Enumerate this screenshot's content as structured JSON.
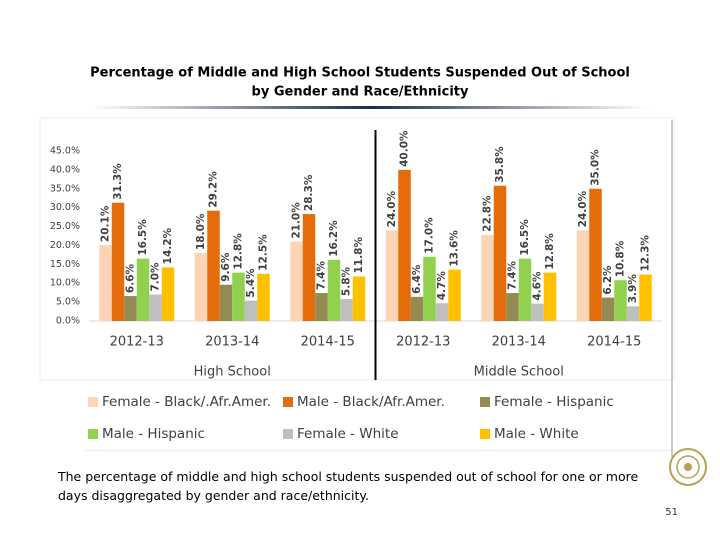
{
  "chart_data": {
    "type": "bar",
    "title": [
      "Percentage of Middle and High School Students Suspended Out of School",
      "by Gender and Race/Ethnicity"
    ],
    "groups": [
      {
        "label": "High School",
        "categories": [
          "2012-13",
          "2013-14",
          "2014-15"
        ]
      },
      {
        "label": "Middle School",
        "categories": [
          "2012-13",
          "2013-14",
          "2014-15"
        ]
      }
    ],
    "series": [
      {
        "name": "Female - Black/.Afr.Amer.",
        "color": "#fbd5b5",
        "values": [
          20.1,
          18.0,
          21.0,
          24.0,
          22.8,
          24.0
        ],
        "value_labels": [
          "20.1%",
          "18.0%",
          "21.0%",
          "24.0%",
          "22.8%",
          "24.0%"
        ]
      },
      {
        "name": "Male - Black/Afr.Amer.",
        "color": "#e46c0a",
        "values": [
          31.3,
          29.2,
          28.3,
          40.0,
          35.8,
          35.0
        ],
        "value_labels": [
          "31.3%",
          "29.2%",
          "28.3%",
          "40.0%",
          "35.8%",
          "35.0%"
        ]
      },
      {
        "name": "Female - Hispanic",
        "color": "#948a54",
        "values": [
          6.6,
          9.6,
          7.4,
          6.4,
          7.4,
          6.2
        ],
        "value_labels": [
          "6.6%",
          "9.6%",
          "7.4%",
          "6.4%",
          "7.4%",
          "6.2%"
        ]
      },
      {
        "name": "Male - Hispanic",
        "color": "#92d050",
        "values": [
          16.5,
          12.8,
          16.2,
          17.0,
          16.5,
          10.8
        ],
        "value_labels": [
          "16.5%",
          "12.8%",
          "16.2%",
          "17.0%",
          "16.5%",
          "10.8%"
        ]
      },
      {
        "name": "Female - White",
        "color": "#bfbfbf",
        "values": [
          7.0,
          5.4,
          5.8,
          4.7,
          4.6,
          3.9
        ],
        "value_labels": [
          "7.0%",
          "5.4%",
          "5.8%",
          "4.7%",
          "4.6%",
          "3.9%"
        ]
      },
      {
        "name": "Male - White",
        "color": "#ffc000",
        "values": [
          14.2,
          12.5,
          11.8,
          13.6,
          12.8,
          12.3
        ],
        "value_labels": [
          "14.2%",
          "12.5%",
          "11.8%",
          "13.6%",
          "12.8%",
          "12.3%"
        ]
      }
    ],
    "ylim": [
      0,
      45
    ],
    "yticks": [
      {
        "value": 0,
        "label": "0.0%"
      },
      {
        "value": 5,
        "label": "5.0%"
      },
      {
        "value": 10,
        "label": "10.0%"
      },
      {
        "value": 15,
        "label": "15.0%"
      },
      {
        "value": 20,
        "label": "20.0%"
      },
      {
        "value": 25,
        "label": "25.0%"
      },
      {
        "value": 30,
        "label": "30.0%"
      },
      {
        "value": 35,
        "label": "35.0%"
      },
      {
        "value": 40,
        "label": "40.0%"
      },
      {
        "value": 45,
        "label": "45.0%"
      }
    ],
    "grid": false
  },
  "caption": "The percentage of middle and high school students suspended out of school for one or more days disaggregated by gender and race/ethnicity.",
  "page_number": "51"
}
